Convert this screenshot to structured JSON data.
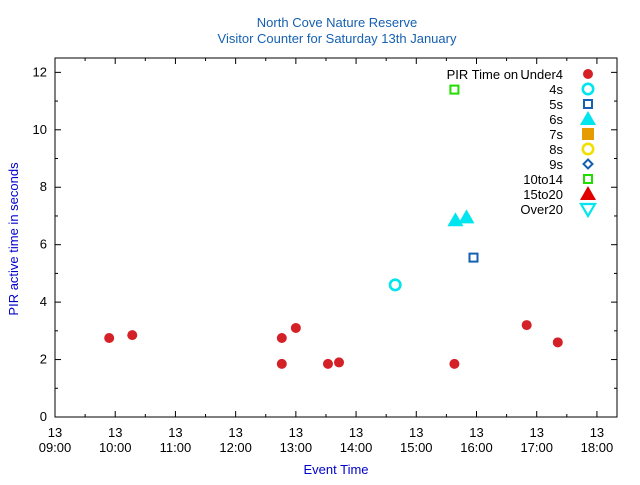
{
  "chart_data": {
    "type": "scatter",
    "title": "North Cove Nature Reserve",
    "subtitle": "Visitor Counter for Saturday 13th January",
    "xlabel": "Event Time",
    "ylabel": "PIR active time in seconds",
    "legend_title": "PIR Time on ..",
    "legend_position": "top-right",
    "grid": false,
    "xlim": [
      "09:00",
      "18:20"
    ],
    "ylim": [
      0,
      12.5
    ],
    "x_ticks": [
      {
        "top": "13",
        "bottom": "09:00",
        "t": "09:00"
      },
      {
        "top": "13",
        "bottom": "10:00",
        "t": "10:00"
      },
      {
        "top": "13",
        "bottom": "11:00",
        "t": "11:00"
      },
      {
        "top": "13",
        "bottom": "12:00",
        "t": "12:00"
      },
      {
        "top": "13",
        "bottom": "13:00",
        "t": "13:00"
      },
      {
        "top": "13",
        "bottom": "14:00",
        "t": "14:00"
      },
      {
        "top": "13",
        "bottom": "15:00",
        "t": "15:00"
      },
      {
        "top": "13",
        "bottom": "16:00",
        "t": "16:00"
      },
      {
        "top": "13",
        "bottom": "17:00",
        "t": "17:00"
      },
      {
        "top": "13",
        "bottom": "18:00",
        "t": "18:00"
      }
    ],
    "y_ticks": [
      0,
      2,
      4,
      6,
      8,
      10,
      12
    ],
    "series": [
      {
        "name": "Under4",
        "marker": "circle-filled",
        "color": "#d42027",
        "points": [
          {
            "x": "09:54",
            "y": 2.75
          },
          {
            "x": "10:17",
            "y": 2.85
          },
          {
            "x": "12:46",
            "y": 2.75
          },
          {
            "x": "12:46",
            "y": 1.85
          },
          {
            "x": "13:00",
            "y": 3.1
          },
          {
            "x": "13:32",
            "y": 1.85
          },
          {
            "x": "13:43",
            "y": 1.9
          },
          {
            "x": "15:38",
            "y": 1.85
          },
          {
            "x": "16:50",
            "y": 3.2
          },
          {
            "x": "17:21",
            "y": 2.6
          }
        ]
      },
      {
        "name": "4s",
        "marker": "circle-open",
        "color": "#00e5ee",
        "points": [
          {
            "x": "14:39",
            "y": 4.6
          }
        ]
      },
      {
        "name": "5s",
        "marker": "square-open",
        "color": "#1660b0",
        "points": [
          {
            "x": "15:57",
            "y": 5.55
          }
        ]
      },
      {
        "name": "6s",
        "marker": "triangle-filled",
        "color": "#00e5ee",
        "points": [
          {
            "x": "15:39",
            "y": 6.85
          },
          {
            "x": "15:50",
            "y": 6.95
          }
        ]
      },
      {
        "name": "7s",
        "marker": "square-filled",
        "color": "#e69b00",
        "points": []
      },
      {
        "name": "8s",
        "marker": "circle-open",
        "color": "#f0e000",
        "points": []
      },
      {
        "name": "9s",
        "marker": "diamond-open",
        "color": "#1660b0",
        "points": []
      },
      {
        "name": "10to14",
        "marker": "square-open",
        "color": "#22dd00",
        "points": [
          {
            "x": "15:38",
            "y": 11.4
          }
        ]
      },
      {
        "name": "15to20",
        "marker": "triangle-filled",
        "color": "#e00000",
        "points": []
      },
      {
        "name": "Over20",
        "marker": "triangle-down-open",
        "color": "#00e5ee",
        "points": []
      }
    ]
  },
  "colors": {
    "title": "#1660b0",
    "axis_label": "#0000cc",
    "axis": "#000000"
  }
}
